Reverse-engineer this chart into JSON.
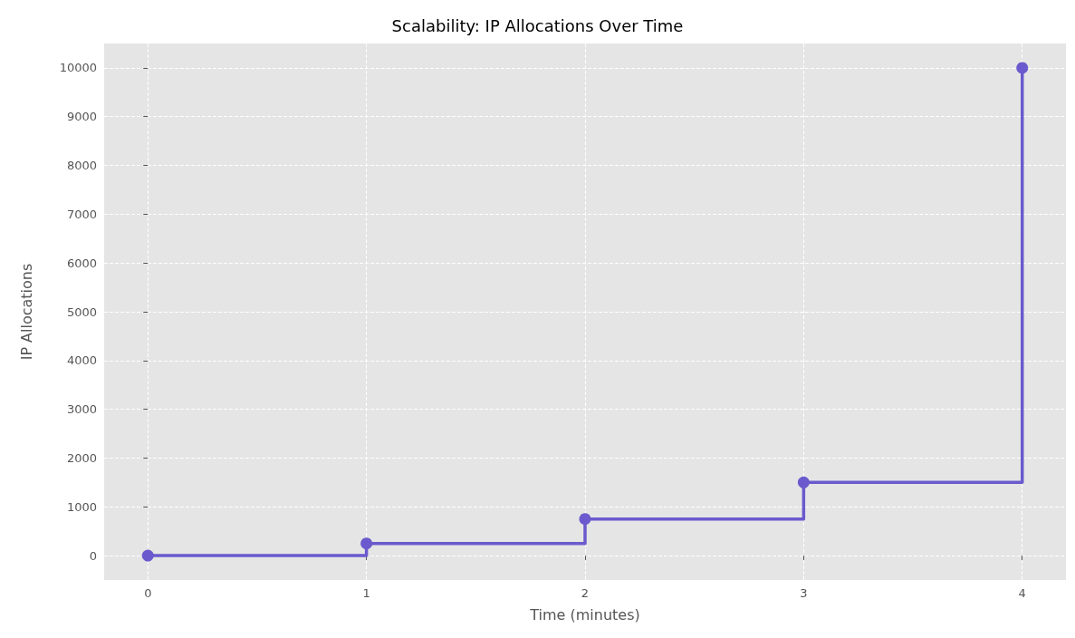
{
  "chart_data": {
    "type": "step",
    "title": "Scalability: IP Allocations Over Time",
    "xlabel": "Time (minutes)",
    "ylabel": "IP Allocations",
    "x": [
      0,
      1,
      2,
      3,
      4
    ],
    "series": [
      {
        "color": "#6a5acd",
        "values": [
          0,
          250,
          750,
          1500,
          10000
        ]
      }
    ],
    "xlim": [
      -0.2,
      4.2
    ],
    "xticks": [
      0,
      1,
      2,
      3,
      4
    ],
    "ylim": [
      -500,
      10500
    ],
    "yticks": [
      0,
      1000,
      2000,
      3000,
      4000,
      5000,
      6000,
      7000,
      8000,
      9000,
      10000
    ],
    "grid": true,
    "marker": "circle",
    "line_style": "solid"
  }
}
